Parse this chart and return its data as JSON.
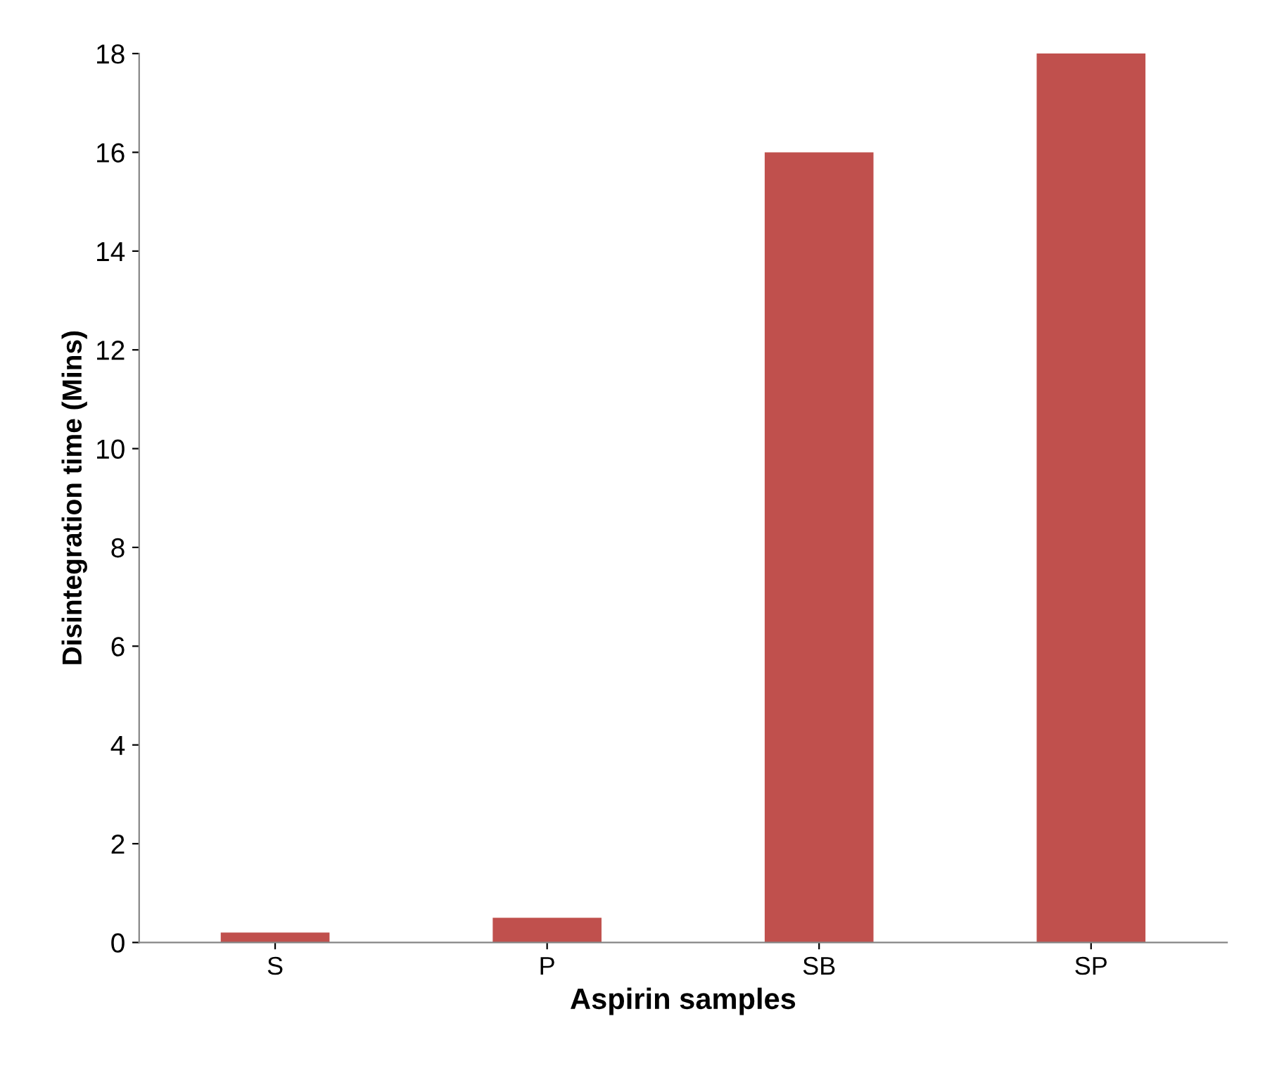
{
  "chart_data": {
    "type": "bar",
    "xlabel": "Aspirin samples",
    "ylabel": "Disintegration time (Mins)",
    "categories": [
      "S",
      "P",
      "SB",
      "SP"
    ],
    "values": [
      0.2,
      0.5,
      16,
      18
    ],
    "color": "#c0504d",
    "ylim": [
      0,
      18
    ],
    "yticks": [
      0,
      2,
      4,
      6,
      8,
      10,
      12,
      14,
      16,
      18
    ],
    "grid": false
  }
}
